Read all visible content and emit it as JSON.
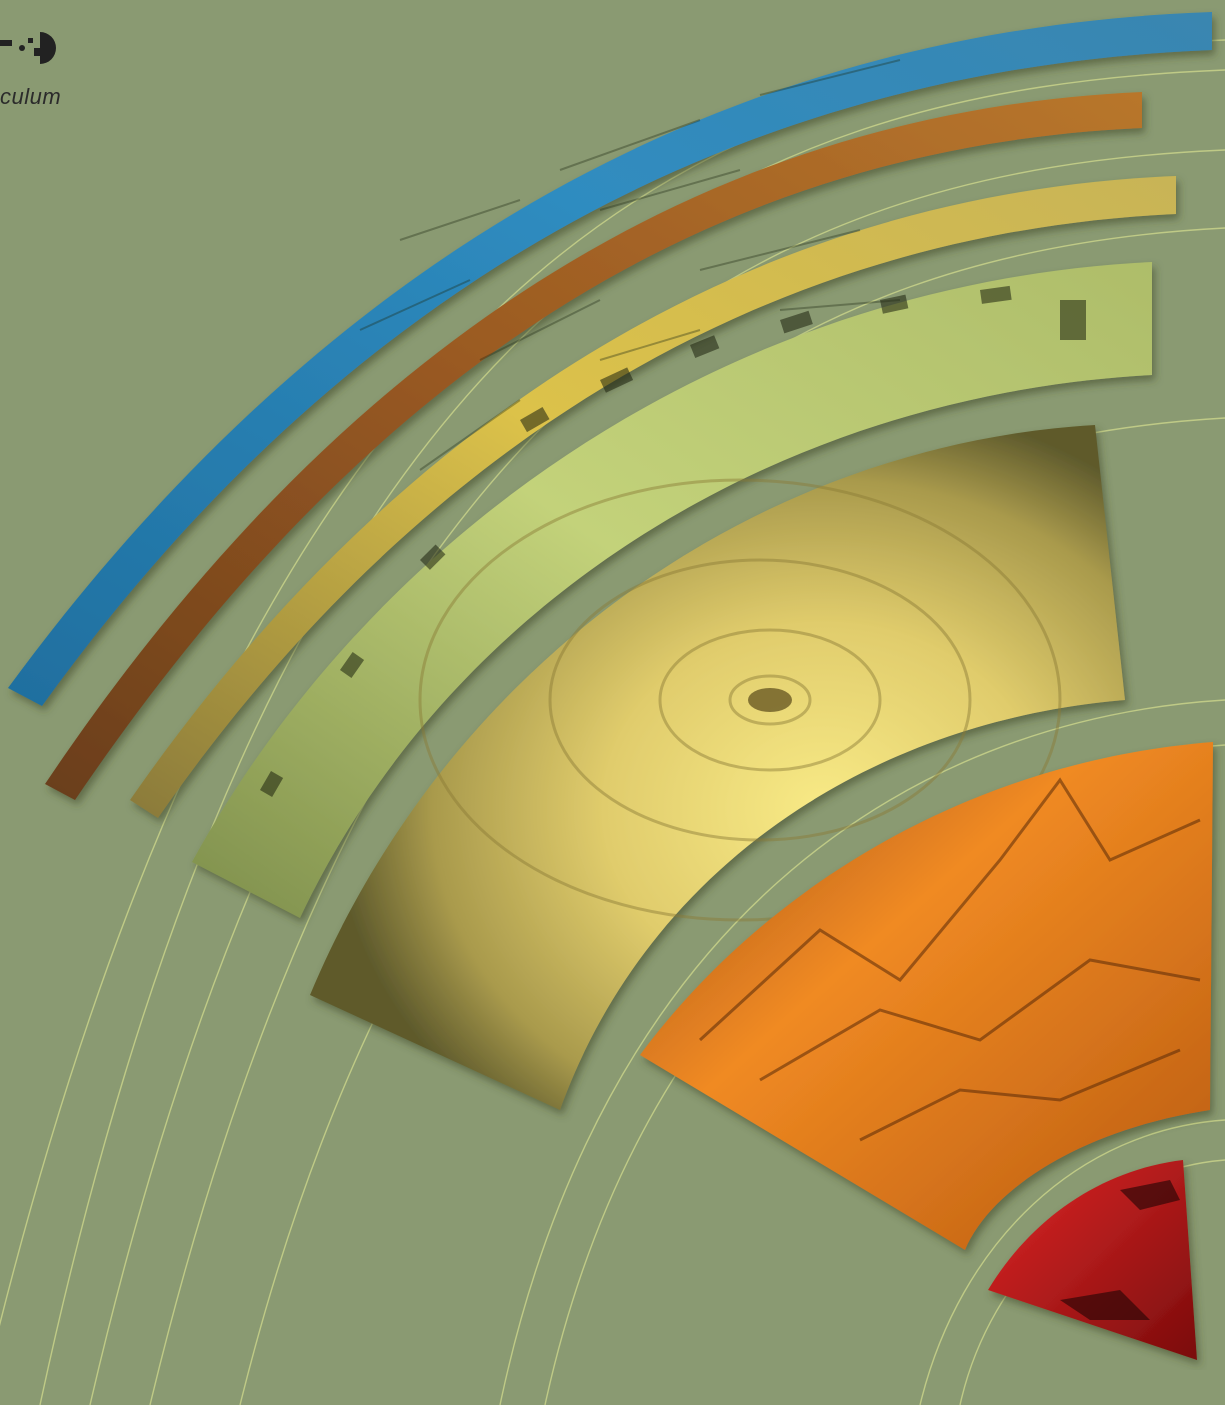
{
  "brand": {
    "wordmark_fragment": "culum"
  },
  "palette": {
    "background": "#8a9a72",
    "line": "#c9d38a",
    "water_band": "#2f86b8",
    "soil_band": "#7a4a22",
    "sand_band": "#c9aa3a",
    "city_band": "#a9b86a",
    "hurricane_band": "#d9c56a",
    "mountain_band": "#e07a1c",
    "red_band": "#b01818"
  },
  "bands": [
    {
      "name": "water-imagery-band",
      "icon": "satellite-water-image"
    },
    {
      "name": "soil-imagery-band",
      "icon": "satellite-soil-image"
    },
    {
      "name": "desert-imagery-band",
      "icon": "satellite-desert-image"
    },
    {
      "name": "city-imagery-band",
      "icon": "aerial-city-image"
    },
    {
      "name": "hurricane-imagery-wedge",
      "icon": "hurricane-image"
    },
    {
      "name": "mountain-imagery-wedge",
      "icon": "3d-terrain-image"
    },
    {
      "name": "red-imagery-wedge",
      "icon": "false-color-image"
    }
  ]
}
